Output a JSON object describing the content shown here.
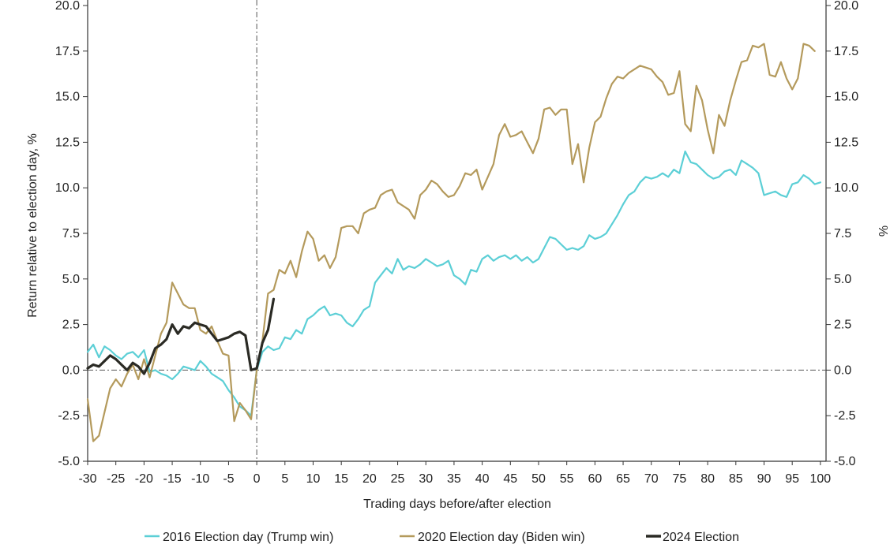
{
  "chart_data": {
    "type": "line",
    "title": "",
    "xlabel": "Trading days before/after election",
    "ylabel_left": "Return relative to election day, %",
    "ylabel_right": "%",
    "xlim": [
      -30,
      101
    ],
    "ylim": [
      -5.0,
      20.0
    ],
    "x_ticks": [
      -30,
      -25,
      -20,
      -15,
      -10,
      -5,
      0,
      5,
      10,
      15,
      20,
      25,
      30,
      35,
      40,
      45,
      50,
      55,
      60,
      65,
      70,
      75,
      80,
      85,
      90,
      95,
      100
    ],
    "x_tick_labels": [
      "-30",
      "-25",
      "-20",
      "-15",
      "-10",
      "-5",
      "0",
      "5",
      "10",
      "15",
      "20",
      "25",
      "30",
      "35",
      "40",
      "45",
      "50",
      "55",
      "60",
      "65",
      "70",
      "75",
      "80",
      "85",
      "90",
      "95",
      "100"
    ],
    "y_ticks": [
      -5.0,
      -2.5,
      0.0,
      2.5,
      5.0,
      7.5,
      10.0,
      12.5,
      15.0,
      17.5,
      20.0
    ],
    "y_tick_labels": [
      "-5.0",
      "-2.5",
      "0.0",
      "2.5",
      "5.0",
      "7.5",
      "10.0",
      "12.5",
      "15.0",
      "17.5",
      "20.0"
    ],
    "grid": false,
    "reference_lines": {
      "vertical_x": 0,
      "horizontal_y": 0.0,
      "style": "dash-dot"
    },
    "legend_position": "bottom",
    "series": [
      {
        "name": "2016 Election day (Trump win)",
        "color": "#5ccfd6",
        "points": [
          [
            -30,
            1.0
          ],
          [
            -29,
            1.4
          ],
          [
            -28,
            0.7
          ],
          [
            -27,
            1.3
          ],
          [
            -26,
            1.1
          ],
          [
            -25,
            0.8
          ],
          [
            -24,
            0.6
          ],
          [
            -23,
            0.9
          ],
          [
            -22,
            1.0
          ],
          [
            -21,
            0.7
          ],
          [
            -20,
            1.1
          ],
          [
            -19,
            -0.1
          ],
          [
            -18,
            0.0
          ],
          [
            -17,
            -0.2
          ],
          [
            -16,
            -0.3
          ],
          [
            -15,
            -0.5
          ],
          [
            -14,
            -0.2
          ],
          [
            -13,
            0.2
          ],
          [
            -12,
            0.1
          ],
          [
            -11,
            0.0
          ],
          [
            -10,
            0.5
          ],
          [
            -9,
            0.2
          ],
          [
            -8,
            -0.2
          ],
          [
            -7,
            -0.4
          ],
          [
            -6,
            -0.6
          ],
          [
            -5,
            -1.1
          ],
          [
            -4,
            -1.5
          ],
          [
            -3,
            -2.0
          ],
          [
            -2,
            -2.2
          ],
          [
            -1,
            -2.5
          ],
          [
            0,
            0.0
          ],
          [
            1,
            1.0
          ],
          [
            2,
            1.3
          ],
          [
            3,
            1.1
          ],
          [
            4,
            1.2
          ],
          [
            5,
            1.8
          ],
          [
            6,
            1.7
          ],
          [
            7,
            2.2
          ],
          [
            8,
            2.0
          ],
          [
            9,
            2.8
          ],
          [
            10,
            3.0
          ],
          [
            11,
            3.3
          ],
          [
            12,
            3.5
          ],
          [
            13,
            3.0
          ],
          [
            14,
            3.1
          ],
          [
            15,
            3.0
          ],
          [
            16,
            2.6
          ],
          [
            17,
            2.4
          ],
          [
            18,
            2.8
          ],
          [
            19,
            3.3
          ],
          [
            20,
            3.5
          ],
          [
            21,
            4.8
          ],
          [
            22,
            5.2
          ],
          [
            23,
            5.6
          ],
          [
            24,
            5.3
          ],
          [
            25,
            6.1
          ],
          [
            26,
            5.5
          ],
          [
            27,
            5.7
          ],
          [
            28,
            5.6
          ],
          [
            29,
            5.8
          ],
          [
            30,
            6.1
          ],
          [
            31,
            5.9
          ],
          [
            32,
            5.7
          ],
          [
            33,
            5.8
          ],
          [
            34,
            6.0
          ],
          [
            35,
            5.2
          ],
          [
            36,
            5.0
          ],
          [
            37,
            4.7
          ],
          [
            38,
            5.5
          ],
          [
            39,
            5.4
          ],
          [
            40,
            6.1
          ],
          [
            41,
            6.3
          ],
          [
            42,
            6.0
          ],
          [
            43,
            6.2
          ],
          [
            44,
            6.3
          ],
          [
            45,
            6.1
          ],
          [
            46,
            6.3
          ],
          [
            47,
            6.0
          ],
          [
            48,
            6.2
          ],
          [
            49,
            5.9
          ],
          [
            50,
            6.1
          ],
          [
            51,
            6.7
          ],
          [
            52,
            7.3
          ],
          [
            53,
            7.2
          ],
          [
            54,
            6.9
          ],
          [
            55,
            6.6
          ],
          [
            56,
            6.7
          ],
          [
            57,
            6.6
          ],
          [
            58,
            6.8
          ],
          [
            59,
            7.4
          ],
          [
            60,
            7.2
          ],
          [
            61,
            7.3
          ],
          [
            62,
            7.5
          ],
          [
            63,
            8.0
          ],
          [
            64,
            8.5
          ],
          [
            65,
            9.1
          ],
          [
            66,
            9.6
          ],
          [
            67,
            9.8
          ],
          [
            68,
            10.3
          ],
          [
            69,
            10.6
          ],
          [
            70,
            10.5
          ],
          [
            71,
            10.6
          ],
          [
            72,
            10.8
          ],
          [
            73,
            10.6
          ],
          [
            74,
            11.0
          ],
          [
            75,
            10.8
          ],
          [
            76,
            12.0
          ],
          [
            77,
            11.4
          ],
          [
            78,
            11.3
          ],
          [
            79,
            11.0
          ],
          [
            80,
            10.7
          ],
          [
            81,
            10.5
          ],
          [
            82,
            10.6
          ],
          [
            83,
            10.9
          ],
          [
            84,
            11.0
          ],
          [
            85,
            10.7
          ],
          [
            86,
            11.5
          ],
          [
            87,
            11.3
          ],
          [
            88,
            11.1
          ],
          [
            89,
            10.8
          ],
          [
            90,
            9.6
          ],
          [
            91,
            9.7
          ],
          [
            92,
            9.8
          ],
          [
            93,
            9.6
          ],
          [
            94,
            9.5
          ],
          [
            95,
            10.2
          ],
          [
            96,
            10.3
          ],
          [
            97,
            10.7
          ],
          [
            98,
            10.5
          ],
          [
            99,
            10.2
          ],
          [
            100,
            10.3
          ]
        ]
      },
      {
        "name": "2020 Election day (Biden win)",
        "color": "#b49a5c",
        "points": [
          [
            -30,
            -1.6
          ],
          [
            -29,
            -3.9
          ],
          [
            -28,
            -3.6
          ],
          [
            -27,
            -2.3
          ],
          [
            -26,
            -1.0
          ],
          [
            -25,
            -0.5
          ],
          [
            -24,
            -0.9
          ],
          [
            -23,
            -0.2
          ],
          [
            -22,
            0.3
          ],
          [
            -21,
            -0.5
          ],
          [
            -20,
            0.6
          ],
          [
            -19,
            -0.4
          ],
          [
            -18,
            0.8
          ],
          [
            -17,
            2.0
          ],
          [
            -16,
            2.6
          ],
          [
            -15,
            4.8
          ],
          [
            -14,
            4.2
          ],
          [
            -13,
            3.6
          ],
          [
            -12,
            3.4
          ],
          [
            -11,
            3.4
          ],
          [
            -10,
            2.2
          ],
          [
            -9,
            2.0
          ],
          [
            -8,
            2.4
          ],
          [
            -7,
            1.6
          ],
          [
            -6,
            0.9
          ],
          [
            -5,
            0.8
          ],
          [
            -4,
            -2.8
          ],
          [
            -3,
            -1.8
          ],
          [
            -2,
            -2.2
          ],
          [
            -1,
            -2.7
          ],
          [
            0,
            0.0
          ],
          [
            1,
            1.6
          ],
          [
            2,
            4.2
          ],
          [
            3,
            4.4
          ],
          [
            4,
            5.5
          ],
          [
            5,
            5.3
          ],
          [
            6,
            6.0
          ],
          [
            7,
            5.1
          ],
          [
            8,
            6.5
          ],
          [
            9,
            7.6
          ],
          [
            10,
            7.2
          ],
          [
            11,
            6.0
          ],
          [
            12,
            6.3
          ],
          [
            13,
            5.6
          ],
          [
            14,
            6.2
          ],
          [
            15,
            7.8
          ],
          [
            16,
            7.9
          ],
          [
            17,
            7.9
          ],
          [
            18,
            7.5
          ],
          [
            19,
            8.6
          ],
          [
            20,
            8.8
          ],
          [
            21,
            8.9
          ],
          [
            22,
            9.6
          ],
          [
            23,
            9.8
          ],
          [
            24,
            9.9
          ],
          [
            25,
            9.2
          ],
          [
            26,
            9.0
          ],
          [
            27,
            8.8
          ],
          [
            28,
            8.3
          ],
          [
            29,
            9.6
          ],
          [
            30,
            9.9
          ],
          [
            31,
            10.4
          ],
          [
            32,
            10.2
          ],
          [
            33,
            9.8
          ],
          [
            34,
            9.5
          ],
          [
            35,
            9.6
          ],
          [
            36,
            10.1
          ],
          [
            37,
            10.8
          ],
          [
            38,
            10.7
          ],
          [
            39,
            11.0
          ],
          [
            40,
            9.9
          ],
          [
            41,
            10.6
          ],
          [
            42,
            11.3
          ],
          [
            43,
            12.9
          ],
          [
            44,
            13.5
          ],
          [
            45,
            12.8
          ],
          [
            46,
            12.9
          ],
          [
            47,
            13.1
          ],
          [
            48,
            12.5
          ],
          [
            49,
            11.9
          ],
          [
            50,
            12.7
          ],
          [
            51,
            14.3
          ],
          [
            52,
            14.4
          ],
          [
            53,
            14.0
          ],
          [
            54,
            14.3
          ],
          [
            55,
            14.3
          ],
          [
            56,
            11.3
          ],
          [
            57,
            12.4
          ],
          [
            58,
            10.3
          ],
          [
            59,
            12.2
          ],
          [
            60,
            13.6
          ],
          [
            61,
            13.9
          ],
          [
            62,
            14.9
          ],
          [
            63,
            15.7
          ],
          [
            64,
            16.1
          ],
          [
            65,
            16.0
          ],
          [
            66,
            16.3
          ],
          [
            67,
            16.5
          ],
          [
            68,
            16.7
          ],
          [
            69,
            16.6
          ],
          [
            70,
            16.5
          ],
          [
            71,
            16.1
          ],
          [
            72,
            15.8
          ],
          [
            73,
            15.1
          ],
          [
            74,
            15.2
          ],
          [
            75,
            16.4
          ],
          [
            76,
            13.5
          ],
          [
            77,
            13.1
          ],
          [
            78,
            15.6
          ],
          [
            79,
            14.8
          ],
          [
            80,
            13.2
          ],
          [
            81,
            11.9
          ],
          [
            82,
            14.0
          ],
          [
            83,
            13.4
          ],
          [
            84,
            14.8
          ],
          [
            85,
            15.9
          ],
          [
            86,
            16.9
          ],
          [
            87,
            17.0
          ],
          [
            88,
            17.8
          ],
          [
            89,
            17.7
          ],
          [
            90,
            17.9
          ],
          [
            91,
            16.2
          ],
          [
            92,
            16.1
          ],
          [
            93,
            16.9
          ],
          [
            94,
            16.0
          ],
          [
            95,
            15.4
          ],
          [
            96,
            16.0
          ],
          [
            97,
            17.9
          ],
          [
            98,
            17.8
          ],
          [
            99,
            17.5
          ]
        ]
      },
      {
        "name": "2024 Election",
        "color": "#2a2a24",
        "points": [
          [
            -30,
            0.1
          ],
          [
            -29,
            0.3
          ],
          [
            -28,
            0.2
          ],
          [
            -27,
            0.5
          ],
          [
            -26,
            0.8
          ],
          [
            -25,
            0.6
          ],
          [
            -24,
            0.3
          ],
          [
            -23,
            0.0
          ],
          [
            -22,
            0.4
          ],
          [
            -21,
            0.2
          ],
          [
            -20,
            -0.2
          ],
          [
            -19,
            0.4
          ],
          [
            -18,
            1.2
          ],
          [
            -17,
            1.4
          ],
          [
            -16,
            1.7
          ],
          [
            -15,
            2.5
          ],
          [
            -14,
            2.0
          ],
          [
            -13,
            2.4
          ],
          [
            -12,
            2.3
          ],
          [
            -11,
            2.6
          ],
          [
            -10,
            2.5
          ],
          [
            -9,
            2.4
          ],
          [
            -8,
            2.0
          ],
          [
            -7,
            1.6
          ],
          [
            -6,
            1.7
          ],
          [
            -5,
            1.8
          ],
          [
            -4,
            2.0
          ],
          [
            -3,
            2.1
          ],
          [
            -2,
            1.9
          ],
          [
            -1,
            0.0
          ],
          [
            0,
            0.1
          ],
          [
            1,
            1.5
          ],
          [
            2,
            2.2
          ],
          [
            3,
            3.9
          ]
        ]
      }
    ]
  }
}
